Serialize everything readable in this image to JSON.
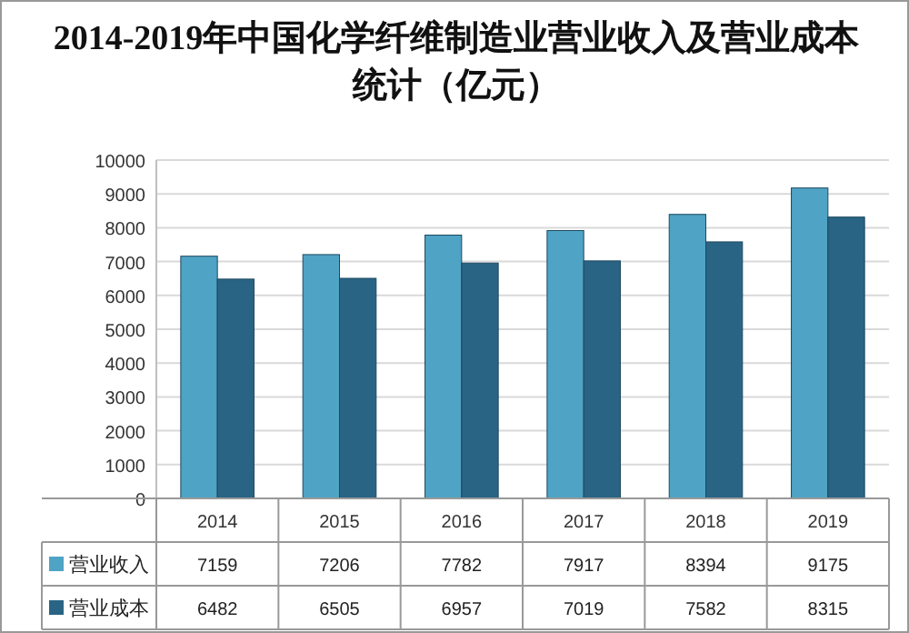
{
  "chart_data": {
    "type": "bar",
    "title": "2014-2019年中国化学纤维制造业营业收入及营业成本统计（亿元）",
    "categories": [
      "2014",
      "2015",
      "2016",
      "2017",
      "2018",
      "2019"
    ],
    "series": [
      {
        "name": "营业收入",
        "color": "#4fa3c4",
        "values": [
          7159,
          7206,
          7782,
          7917,
          8394,
          9175
        ]
      },
      {
        "name": "营业成本",
        "color": "#2a6485",
        "values": [
          6482,
          6505,
          6957,
          7019,
          7582,
          8315
        ]
      }
    ],
    "ylim": [
      0,
      10000
    ],
    "yticks": [
      0,
      1000,
      2000,
      3000,
      4000,
      5000,
      6000,
      7000,
      8000,
      9000,
      10000
    ],
    "grid": "y",
    "data_labels": true,
    "legend": "bottom"
  }
}
